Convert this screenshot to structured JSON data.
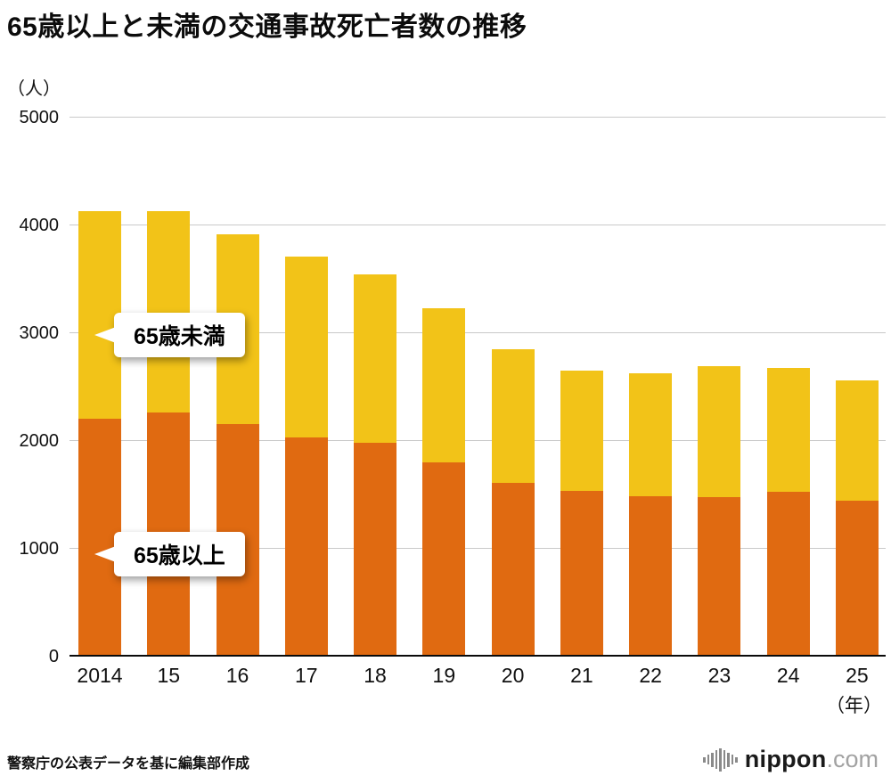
{
  "title": "65歳以上と未満の交通事故死亡者数の推移",
  "y_axis": {
    "unit": "（人）",
    "ticks": [
      {
        "label": "0",
        "value": 0
      },
      {
        "label": "1000",
        "value": 1000
      },
      {
        "label": "2000",
        "value": 2000
      },
      {
        "label": "3000",
        "value": 3000
      },
      {
        "label": "4000",
        "value": 4000
      },
      {
        "label": "5000",
        "value": 5000
      }
    ]
  },
  "x_axis": {
    "unit": "（年）"
  },
  "callouts": {
    "under65": "65歳未満",
    "over65": "65歳以上"
  },
  "source": "警察庁の公表データを基に編集部作成",
  "logo": {
    "name": "nippon",
    "tld": ".com"
  },
  "colors": {
    "over65": "#e06a11",
    "under65": "#f2c318",
    "grid": "#c9c9c9"
  },
  "chart_data": {
    "type": "bar",
    "stacked": true,
    "title": "65歳以上と未満の交通事故死亡者数の推移",
    "ylabel": "（人）",
    "xlabel": "（年）",
    "ylim": [
      0,
      5000
    ],
    "gridlines": [
      1000,
      2000,
      3000,
      4000,
      5000
    ],
    "legend_position": "callouts-inside-plot",
    "categories": [
      "2014",
      "15",
      "16",
      "17",
      "18",
      "19",
      "20",
      "21",
      "22",
      "23",
      "24",
      "25"
    ],
    "series": [
      {
        "name": "65歳以上",
        "color": "#e06a11",
        "values": [
          2193,
          2247,
          2138,
          2020,
          1966,
          1782,
          1596,
          1520,
          1471,
          1466,
          1513,
          1430
        ]
      },
      {
        "name": "65歳未満",
        "color": "#f2c318",
        "values": [
          1920,
          1870,
          1766,
          1674,
          1566,
          1433,
          1243,
          1116,
          1139,
          1212,
          1150,
          1115
        ]
      }
    ],
    "totals": [
      4113,
      4117,
      3904,
      3694,
      3532,
      3215,
      2839,
      2636,
      2610,
      2678,
      2663,
      2545
    ]
  }
}
